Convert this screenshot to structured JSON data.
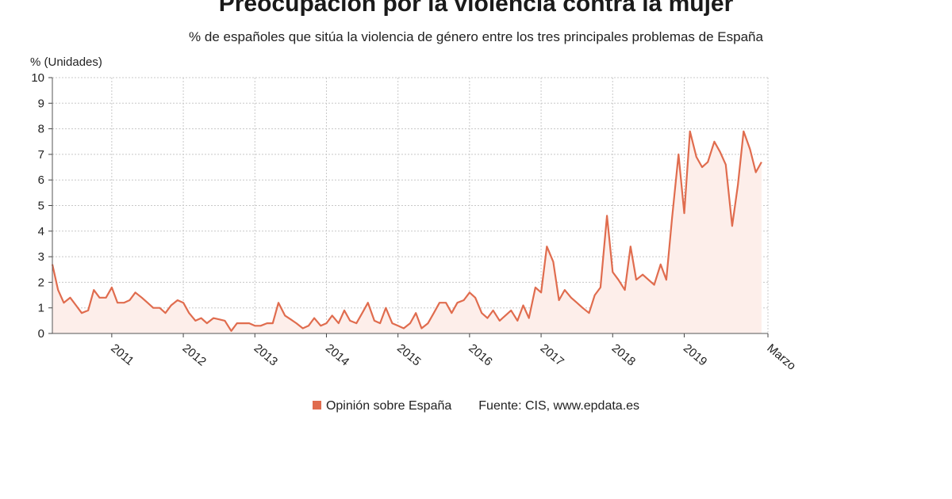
{
  "chart_data": {
    "type": "area",
    "title": "Preocupación por la violencia contra la mujer",
    "subtitle": "% de españoles que sitúa la violencia de género entre los tres principales problemas de España",
    "ylabel": "% (Unidades)",
    "ylim": [
      0,
      10
    ],
    "yticks": [
      "0",
      "1",
      "2",
      "3",
      "4",
      "5",
      "6",
      "7",
      "8",
      "9",
      "10"
    ],
    "xlim": [
      2010.17,
      2020.17
    ],
    "xticks": [
      {
        "x": 2011,
        "label": "2011"
      },
      {
        "x": 2012,
        "label": "2012"
      },
      {
        "x": 2013,
        "label": "2013"
      },
      {
        "x": 2014,
        "label": "2014"
      },
      {
        "x": 2015,
        "label": "2015"
      },
      {
        "x": 2016,
        "label": "2016"
      },
      {
        "x": 2017,
        "label": "2017"
      },
      {
        "x": 2018,
        "label": "2018"
      },
      {
        "x": 2019,
        "label": "2019"
      },
      {
        "x": 2020.17,
        "label": "Marzo"
      }
    ],
    "grid": true,
    "legend_position": "bottom",
    "color": "#e06c4e",
    "fill_color": "#fdeeea",
    "series": [
      {
        "name": "Opinión sobre España",
        "points": [
          [
            2010.17,
            2.7
          ],
          [
            2010.25,
            1.7
          ],
          [
            2010.33,
            1.2
          ],
          [
            2010.42,
            1.4
          ],
          [
            2010.5,
            1.1
          ],
          [
            2010.58,
            0.8
          ],
          [
            2010.67,
            0.9
          ],
          [
            2010.75,
            1.7
          ],
          [
            2010.83,
            1.4
          ],
          [
            2010.92,
            1.4
          ],
          [
            2011.0,
            1.8
          ],
          [
            2011.08,
            1.2
          ],
          [
            2011.17,
            1.2
          ],
          [
            2011.25,
            1.3
          ],
          [
            2011.33,
            1.6
          ],
          [
            2011.42,
            1.4
          ],
          [
            2011.5,
            1.2
          ],
          [
            2011.58,
            1.0
          ],
          [
            2011.67,
            1.0
          ],
          [
            2011.75,
            0.8
          ],
          [
            2011.83,
            1.1
          ],
          [
            2011.92,
            1.3
          ],
          [
            2012.0,
            1.2
          ],
          [
            2012.08,
            0.8
          ],
          [
            2012.17,
            0.5
          ],
          [
            2012.25,
            0.6
          ],
          [
            2012.33,
            0.4
          ],
          [
            2012.42,
            0.6
          ],
          [
            2012.5,
            0.55
          ],
          [
            2012.58,
            0.5
          ],
          [
            2012.67,
            0.1
          ],
          [
            2012.75,
            0.4
          ],
          [
            2012.83,
            0.4
          ],
          [
            2012.92,
            0.4
          ],
          [
            2013.0,
            0.3
          ],
          [
            2013.08,
            0.3
          ],
          [
            2013.17,
            0.4
          ],
          [
            2013.25,
            0.4
          ],
          [
            2013.33,
            1.2
          ],
          [
            2013.42,
            0.7
          ],
          [
            2013.5,
            0.55
          ],
          [
            2013.58,
            0.4
          ],
          [
            2013.67,
            0.2
          ],
          [
            2013.75,
            0.3
          ],
          [
            2013.83,
            0.6
          ],
          [
            2013.92,
            0.3
          ],
          [
            2014.0,
            0.4
          ],
          [
            2014.08,
            0.7
          ],
          [
            2014.17,
            0.4
          ],
          [
            2014.25,
            0.9
          ],
          [
            2014.33,
            0.5
          ],
          [
            2014.42,
            0.4
          ],
          [
            2014.5,
            0.8
          ],
          [
            2014.58,
            1.2
          ],
          [
            2014.67,
            0.5
          ],
          [
            2014.75,
            0.4
          ],
          [
            2014.83,
            1.0
          ],
          [
            2014.92,
            0.4
          ],
          [
            2015.0,
            0.3
          ],
          [
            2015.08,
            0.2
          ],
          [
            2015.17,
            0.4
          ],
          [
            2015.25,
            0.8
          ],
          [
            2015.33,
            0.2
          ],
          [
            2015.42,
            0.4
          ],
          [
            2015.5,
            0.8
          ],
          [
            2015.58,
            1.2
          ],
          [
            2015.67,
            1.2
          ],
          [
            2015.75,
            0.8
          ],
          [
            2015.83,
            1.2
          ],
          [
            2015.92,
            1.3
          ],
          [
            2016.0,
            1.6
          ],
          [
            2016.08,
            1.4
          ],
          [
            2016.17,
            0.8
          ],
          [
            2016.25,
            0.6
          ],
          [
            2016.33,
            0.9
          ],
          [
            2016.42,
            0.5
          ],
          [
            2016.5,
            0.7
          ],
          [
            2016.58,
            0.9
          ],
          [
            2016.67,
            0.5
          ],
          [
            2016.75,
            1.1
          ],
          [
            2016.83,
            0.6
          ],
          [
            2016.92,
            1.8
          ],
          [
            2017.0,
            1.6
          ],
          [
            2017.08,
            3.4
          ],
          [
            2017.17,
            2.8
          ],
          [
            2017.25,
            1.3
          ],
          [
            2017.33,
            1.7
          ],
          [
            2017.42,
            1.4
          ],
          [
            2017.5,
            1.2
          ],
          [
            2017.58,
            1.0
          ],
          [
            2017.67,
            0.8
          ],
          [
            2017.75,
            1.5
          ],
          [
            2017.83,
            1.8
          ],
          [
            2017.92,
            4.6
          ],
          [
            2018.0,
            2.4
          ],
          [
            2018.08,
            2.1
          ],
          [
            2018.17,
            1.7
          ],
          [
            2018.25,
            3.4
          ],
          [
            2018.33,
            2.1
          ],
          [
            2018.42,
            2.3
          ],
          [
            2018.5,
            2.1
          ],
          [
            2018.58,
            1.9
          ],
          [
            2018.67,
            2.7
          ],
          [
            2018.75,
            2.1
          ],
          [
            2018.83,
            4.5
          ],
          [
            2018.92,
            7.0
          ],
          [
            2019.0,
            4.7
          ],
          [
            2019.08,
            7.9
          ],
          [
            2019.17,
            6.9
          ],
          [
            2019.25,
            6.5
          ],
          [
            2019.33,
            6.7
          ],
          [
            2019.42,
            7.5
          ],
          [
            2019.5,
            7.1
          ],
          [
            2019.58,
            6.6
          ],
          [
            2019.67,
            4.2
          ],
          [
            2019.75,
            5.8
          ],
          [
            2019.83,
            7.9
          ],
          [
            2019.92,
            7.2
          ],
          [
            2020.0,
            6.3
          ],
          [
            2020.08,
            6.7
          ]
        ]
      }
    ]
  },
  "legend": {
    "series_label": "Opinión sobre España",
    "source": "Fuente: CIS, www.epdata.es"
  }
}
